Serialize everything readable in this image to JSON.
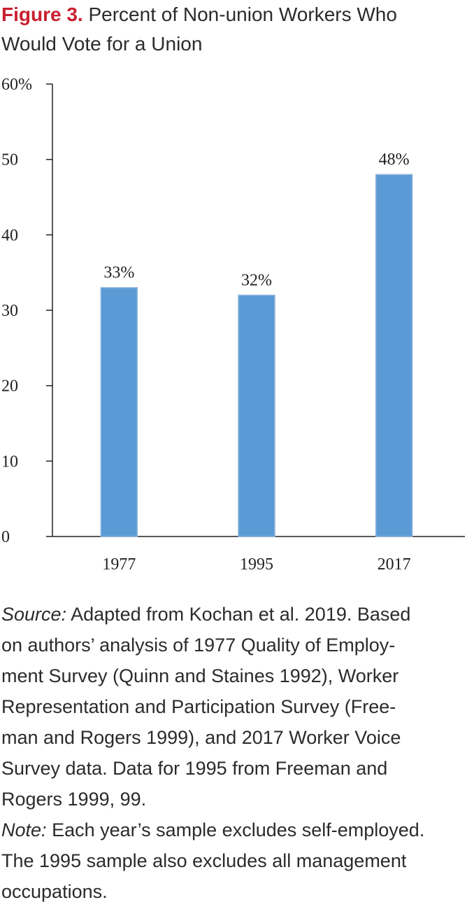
{
  "title": {
    "label": "Figure 3.",
    "text_line1": "Percent of Non-union Workers Who",
    "text_line2": "Would Vote for a Union"
  },
  "chart_data": {
    "type": "bar",
    "categories": [
      "1977",
      "1995",
      "2017"
    ],
    "values": [
      33,
      32,
      48
    ],
    "data_labels": [
      "33%",
      "32%",
      "48%"
    ],
    "ylim": [
      0,
      60
    ],
    "yticks": [
      0,
      10,
      20,
      30,
      40,
      50,
      60
    ],
    "ytick_labels": [
      "0",
      "10",
      "20",
      "30",
      "40",
      "50",
      "60%"
    ],
    "bar_color": "#5b9bd5",
    "grid": false
  },
  "notes": {
    "source_label": "Source:",
    "source_lines": [
      "Adapted from Kochan et al. 2019. Based",
      "on authors’ analysis of 1977 Quality of Employ-",
      "ment Survey (Quinn and Staines 1992), Worker",
      "Representation and Participation Survey (Free-",
      "man and Rogers 1999), and 2017 Worker Voice",
      "Survey data. Data for 1995 from Freeman and",
      "Rogers 1999, 99."
    ],
    "note_label": "Note:",
    "note_lines": [
      "Each year’s sample excludes self-employed.",
      "The 1995 sample also excludes all management",
      "occupations."
    ]
  }
}
